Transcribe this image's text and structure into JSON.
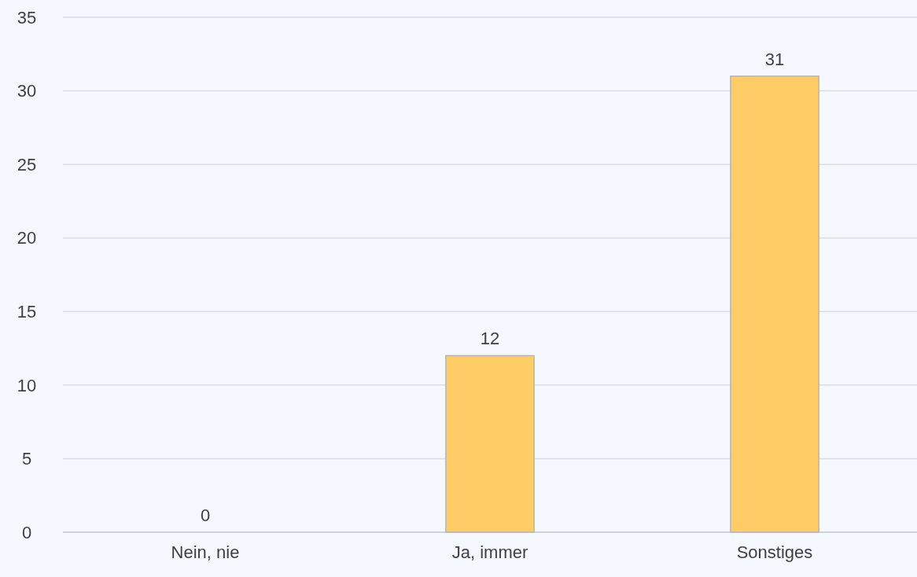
{
  "chart_data": {
    "type": "bar",
    "categories": [
      "Nein, nie",
      "Ja, immer",
      "Sonstiges"
    ],
    "values": [
      0,
      12,
      31
    ],
    "color": "#ffcc66",
    "ylim": [
      0,
      35
    ],
    "yticks": [
      0,
      5,
      10,
      15,
      20,
      25,
      30,
      35
    ],
    "grid": "y",
    "data_labels": true
  }
}
